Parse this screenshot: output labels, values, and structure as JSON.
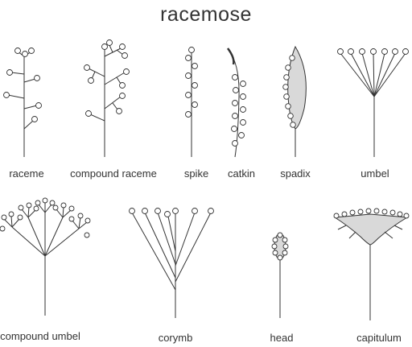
{
  "title": "racemose",
  "labels": {
    "raceme": "raceme",
    "compound_raceme": "compound raceme",
    "spike": "spike",
    "catkin": "catkin",
    "spadix": "spadix",
    "umbel": "umbel",
    "compound_umbel": "compound umbel",
    "corymb": "corymb",
    "head": "head",
    "capitulum": "capitulum"
  },
  "colors": {
    "line": "#333333",
    "fill": "#d9d9d9",
    "background": "#ffffff"
  }
}
